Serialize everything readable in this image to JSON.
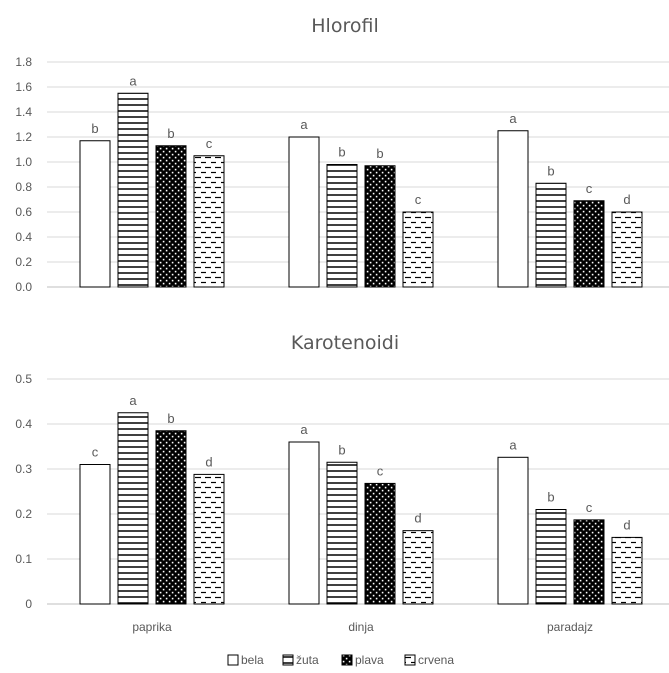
{
  "chart_data": [
    {
      "type": "bar",
      "title": "Hlorofil",
      "categories": [
        "paprika",
        "dinja",
        "paradajz"
      ],
      "ylim": [
        0,
        1.8
      ],
      "yticks": [
        "0.0",
        "0.2",
        "0.4",
        "0.6",
        "0.8",
        "1.0",
        "1.2",
        "1.4",
        "1.6",
        "1.8"
      ],
      "grid": true,
      "series": [
        {
          "name": "bela",
          "values": [
            1.17,
            1.2,
            1.25
          ],
          "labels": [
            "b",
            "a",
            "a"
          ]
        },
        {
          "name": "žuta",
          "values": [
            1.55,
            0.98,
            0.83
          ],
          "labels": [
            "a",
            "b",
            "b"
          ]
        },
        {
          "name": "plava",
          "values": [
            1.13,
            0.97,
            0.69
          ],
          "labels": [
            "b",
            "b",
            "c"
          ]
        },
        {
          "name": "crvena",
          "values": [
            1.05,
            0.6,
            0.6
          ],
          "labels": [
            "c",
            "c",
            "d"
          ]
        }
      ]
    },
    {
      "type": "bar",
      "title": "Karotenoidi",
      "categories": [
        "paprika",
        "dinja",
        "paradajz"
      ],
      "ylim": [
        0,
        0.5
      ],
      "yticks": [
        "0",
        "0.1",
        "0.2",
        "0.3",
        "0.4",
        "0.5"
      ],
      "grid": true,
      "series": [
        {
          "name": "bela",
          "values": [
            0.31,
            0.36,
            0.326
          ],
          "labels": [
            "c",
            "a",
            "a"
          ]
        },
        {
          "name": "žuta",
          "values": [
            0.425,
            0.315,
            0.21
          ],
          "labels": [
            "a",
            "b",
            "b"
          ]
        },
        {
          "name": "plava",
          "values": [
            0.385,
            0.268,
            0.187
          ],
          "labels": [
            "b",
            "c",
            "c"
          ]
        },
        {
          "name": "crvena",
          "values": [
            0.288,
            0.163,
            0.148
          ],
          "labels": [
            "d",
            "d",
            "d"
          ]
        }
      ]
    }
  ],
  "legend": {
    "placement": "bottom",
    "items": [
      {
        "name": "bela",
        "pattern": "blank"
      },
      {
        "name": "žuta",
        "pattern": "horizontal-lines"
      },
      {
        "name": "plava",
        "pattern": "dots"
      },
      {
        "name": "crvena",
        "pattern": "dashes"
      }
    ]
  },
  "colors": {
    "bar_stroke": "#000000",
    "bar_fill": "#ffffff",
    "grid": "#d9d9d9",
    "text": "#595959"
  }
}
